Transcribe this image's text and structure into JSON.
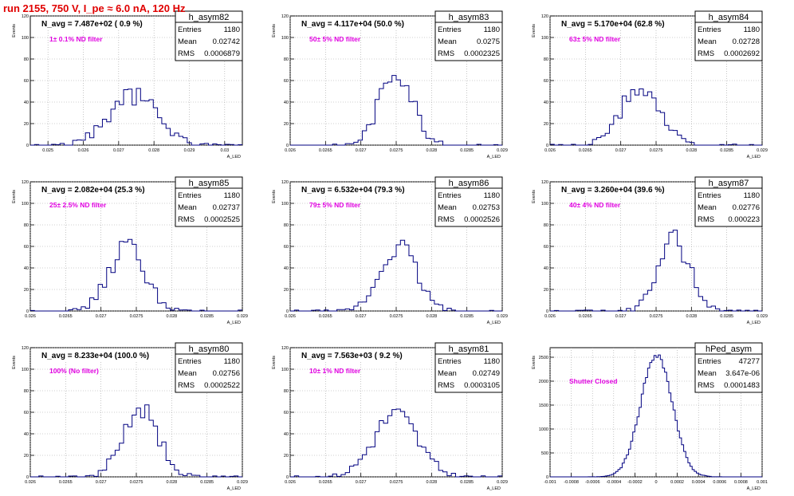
{
  "run_title": "run 2155,   750 V, I_pe ≈ 6.0 nA, 120 Hz",
  "colors": {
    "hist": "#000080",
    "annotation": "#e000e0",
    "title": "#e00000",
    "grid": "#a0a0a0"
  },
  "chart_data": [
    {
      "type": "bar",
      "name": "h_asym82",
      "navg": "N_avg = 7.487e+02 ( 0.9 %)",
      "label": "1± 0.1% ND filter",
      "entries": "1180",
      "mean": "0.02742",
      "rms": "0.0006879",
      "ylabel": "Events",
      "xlabel": "A_LED",
      "xlim": [
        0.0245,
        0.0305
      ],
      "ylim": [
        0,
        120
      ],
      "xticks": [
        0.025,
        0.026,
        0.027,
        0.028,
        0.029,
        0.03
      ],
      "xticklabels": [
        "0.025",
        "0.026",
        "0.027",
        "0.028",
        "0.029",
        "0.03"
      ],
      "yticks": [
        0,
        20,
        40,
        60,
        80,
        100,
        120
      ],
      "yticklabels": [
        "0",
        "20",
        "40",
        "60",
        "80",
        "100",
        "120"
      ],
      "mu": 0.02742,
      "sigma": 0.0006879,
      "peak": 46,
      "nbins": 50,
      "seed": 82
    },
    {
      "type": "bar",
      "name": "h_asym83",
      "navg": "N_avg = 4.117e+04 (50.0 %)",
      "label": "50± 5% ND filter",
      "entries": "1180",
      "mean": "0.0275",
      "rms": "0.0002325",
      "ylabel": "Events",
      "xlabel": "A_LED",
      "xlim": [
        0.026,
        0.029
      ],
      "ylim": [
        0,
        120
      ],
      "xticks": [
        0.026,
        0.0265,
        0.027,
        0.0275,
        0.028,
        0.0285,
        0.029
      ],
      "xticklabels": [
        "0.026",
        "0.0265",
        "0.027",
        "0.0275",
        "0.028",
        "0.0285",
        "0.029"
      ],
      "yticks": [
        0,
        20,
        40,
        60,
        80,
        100,
        120
      ],
      "yticklabels": [
        "0",
        "20",
        "40",
        "60",
        "80",
        "100",
        "120"
      ],
      "mu": 0.0275,
      "sigma": 0.0002325,
      "peak": 70,
      "nbins": 50,
      "seed": 83
    },
    {
      "type": "bar",
      "name": "h_asym84",
      "navg": "N_avg = 5.170e+04 (62.8 %)",
      "label": "63± 5% ND filter",
      "entries": "1180",
      "mean": "0.02728",
      "rms": "0.0002692",
      "ylabel": "Events",
      "xlabel": "A_LED",
      "xlim": [
        0.026,
        0.029
      ],
      "ylim": [
        0,
        120
      ],
      "xticks": [
        0.026,
        0.0265,
        0.027,
        0.0275,
        0.028,
        0.0285,
        0.029
      ],
      "xticklabels": [
        "0.026",
        "0.0265",
        "0.027",
        "0.0275",
        "0.028",
        "0.0285",
        "0.029"
      ],
      "yticks": [
        0,
        20,
        40,
        60,
        80,
        100,
        120
      ],
      "yticklabels": [
        "0",
        "20",
        "40",
        "60",
        "80",
        "100",
        "120"
      ],
      "mu": 0.02728,
      "sigma": 0.0002692,
      "peak": 55,
      "nbins": 50,
      "seed": 84
    },
    {
      "type": "bar",
      "name": "h_asym85",
      "navg": "N_avg = 2.082e+04 (25.3 %)",
      "label": "25± 2.5% ND filter",
      "entries": "1180",
      "mean": "0.02737",
      "rms": "0.0002525",
      "ylabel": "Events",
      "xlabel": "A_LED",
      "xlim": [
        0.026,
        0.029
      ],
      "ylim": [
        0,
        120
      ],
      "xticks": [
        0.026,
        0.0265,
        0.027,
        0.0275,
        0.028,
        0.0285,
        0.029
      ],
      "xticklabels": [
        "0.026",
        "0.0265",
        "0.027",
        "0.0275",
        "0.028",
        "0.0285",
        "0.029"
      ],
      "yticks": [
        0,
        20,
        40,
        60,
        80,
        100,
        120
      ],
      "yticklabels": [
        "0",
        "20",
        "40",
        "60",
        "80",
        "100",
        "120"
      ],
      "mu": 0.02737,
      "sigma": 0.0002525,
      "peak": 60,
      "nbins": 50,
      "seed": 85
    },
    {
      "type": "bar",
      "name": "h_asym86",
      "navg": "N_avg = 6.532e+04 (79.3 %)",
      "label": "79± 5% ND filter",
      "entries": "1180",
      "mean": "0.02753",
      "rms": "0.0002526",
      "ylabel": "Events",
      "xlabel": "A_LED",
      "xlim": [
        0.026,
        0.029
      ],
      "ylim": [
        0,
        120
      ],
      "xticks": [
        0.026,
        0.0265,
        0.027,
        0.0275,
        0.028,
        0.0285,
        0.029
      ],
      "xticklabels": [
        "0.026",
        "0.0265",
        "0.027",
        "0.0275",
        "0.028",
        "0.0285",
        "0.029"
      ],
      "yticks": [
        0,
        20,
        40,
        60,
        80,
        100,
        120
      ],
      "yticklabels": [
        "0",
        "20",
        "40",
        "60",
        "80",
        "100",
        "120"
      ],
      "mu": 0.02753,
      "sigma": 0.0002526,
      "peak": 60,
      "nbins": 50,
      "seed": 86
    },
    {
      "type": "bar",
      "name": "h_asym87",
      "navg": "N_avg = 3.260e+04 (39.6 %)",
      "label": "40± 4% ND filter",
      "entries": "1180",
      "mean": "0.02776",
      "rms": "0.000223",
      "ylabel": "Events",
      "xlabel": "A_LED",
      "xlim": [
        0.026,
        0.029
      ],
      "ylim": [
        0,
        120
      ],
      "xticks": [
        0.026,
        0.0265,
        0.027,
        0.0275,
        0.028,
        0.0285,
        0.029
      ],
      "xticklabels": [
        "0.026",
        "0.0265",
        "0.027",
        "0.0275",
        "0.028",
        "0.0285",
        "0.029"
      ],
      "yticks": [
        0,
        20,
        40,
        60,
        80,
        100,
        120
      ],
      "yticklabels": [
        "0",
        "20",
        "40",
        "60",
        "80",
        "100",
        "120"
      ],
      "mu": 0.02776,
      "sigma": 0.000223,
      "peak": 65,
      "nbins": 50,
      "seed": 87
    },
    {
      "type": "bar",
      "name": "h_asym80",
      "navg": "N_avg = 8.233e+04 (100.0 %)",
      "label": "100% (No filter)",
      "entries": "1180",
      "mean": "0.02756",
      "rms": "0.0002522",
      "ylabel": "Events",
      "xlabel": "A_LED",
      "xlim": [
        0.026,
        0.029
      ],
      "ylim": [
        0,
        120
      ],
      "xticks": [
        0.026,
        0.0265,
        0.027,
        0.0275,
        0.028,
        0.0285,
        0.029
      ],
      "xticklabels": [
        "0.026",
        "0.0265",
        "0.027",
        "0.0275",
        "0.028",
        "0.0285",
        "0.029"
      ],
      "yticks": [
        0,
        20,
        40,
        60,
        80,
        100,
        120
      ],
      "yticklabels": [
        "0",
        "20",
        "40",
        "60",
        "80",
        "100",
        "120"
      ],
      "mu": 0.02756,
      "sigma": 0.0002522,
      "peak": 62,
      "nbins": 50,
      "seed": 80
    },
    {
      "type": "bar",
      "name": "h_asym81",
      "navg": "N_avg = 7.563e+03 ( 9.2 %)",
      "label": "10± 1% ND filter",
      "entries": "1180",
      "mean": "0.02749",
      "rms": "0.0003105",
      "ylabel": "Events",
      "xlabel": "A_LED",
      "xlim": [
        0.026,
        0.029
      ],
      "ylim": [
        0,
        120
      ],
      "xticks": [
        0.026,
        0.0265,
        0.027,
        0.0275,
        0.028,
        0.0285,
        0.029
      ],
      "xticklabels": [
        "0.026",
        "0.0265",
        "0.027",
        "0.0275",
        "0.028",
        "0.0285",
        "0.029"
      ],
      "yticks": [
        0,
        20,
        40,
        60,
        80,
        100,
        120
      ],
      "yticklabels": [
        "0",
        "20",
        "40",
        "60",
        "80",
        "100",
        "120"
      ],
      "mu": 0.02749,
      "sigma": 0.0003105,
      "peak": 58,
      "nbins": 50,
      "seed": 81
    },
    {
      "type": "bar",
      "name": "hPed_asym",
      "navg": "",
      "label": "Shutter Closed",
      "entries": "47277",
      "mean": "3.647e-06",
      "rms": "0.0001483",
      "ylabel": "Events",
      "xlabel": "A_LED",
      "xlim": [
        -0.001,
        0.001
      ],
      "ylim": [
        0,
        2700
      ],
      "xticks": [
        -0.001,
        -0.0008,
        -0.0006,
        -0.0004,
        -0.0002,
        0,
        0.0002,
        0.0004,
        0.0006,
        0.0008,
        0.001
      ],
      "xticklabels": [
        "-0.001",
        "-0.0008",
        "-0.0006",
        "-0.0004",
        "-0.0002",
        "0",
        "0.0002",
        "0.0004",
        "0.0006",
        "0.0008",
        "0.001"
      ],
      "yticks": [
        0,
        500,
        1000,
        1500,
        2000,
        2500
      ],
      "yticklabels": [
        "0",
        "500",
        "1000",
        "1500",
        "2000",
        "2500"
      ],
      "mu": 3.647e-06,
      "sigma": 0.0001483,
      "peak": 2560,
      "nbins": 100,
      "seed": 99
    }
  ]
}
